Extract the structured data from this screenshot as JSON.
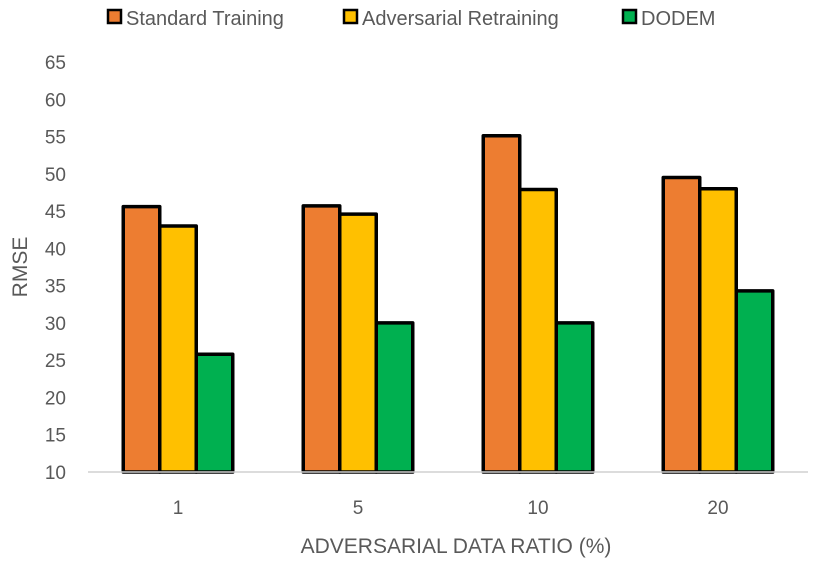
{
  "chart_data": {
    "type": "bar",
    "categories": [
      "1",
      "5",
      "10",
      "20"
    ],
    "series": [
      {
        "name": "Standard Training",
        "color": "#ED7D31",
        "values": [
          45.6,
          45.7,
          55.1,
          49.5
        ]
      },
      {
        "name": "Adversarial Retraining",
        "color": "#FFC000",
        "values": [
          43.0,
          44.6,
          47.9,
          48.0
        ]
      },
      {
        "name": "DODEM",
        "color": "#00B050",
        "values": [
          25.8,
          30.0,
          30.0,
          34.3
        ]
      }
    ],
    "title": "",
    "xlabel": "ADVERSARIAL DATA RATIO (%)",
    "ylabel": "RMSE",
    "ylim": [
      10,
      65
    ],
    "yticks": [
      10,
      15,
      20,
      25,
      30,
      35,
      40,
      45,
      50,
      55,
      60,
      65
    ],
    "grid": false,
    "legend_position": "top"
  }
}
